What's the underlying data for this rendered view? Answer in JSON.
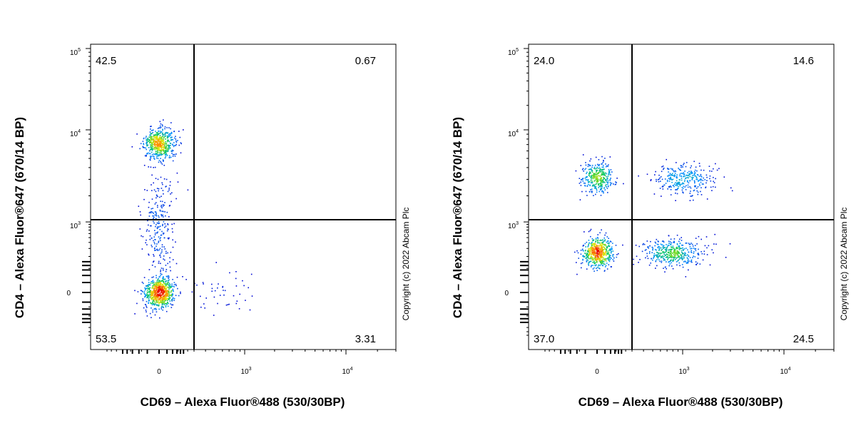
{
  "copyright": "Copyright (c) 2022 Abcam Plc",
  "chart_data": [
    {
      "type": "scatter",
      "title": "",
      "xlabel": "CD69 – Alexa Fluor®488 (530/30BP)",
      "ylabel": "CD4 – Alexa Fluor®647 (670/14 BP)",
      "x_scale": "biexponential",
      "y_scale": "biexponential",
      "x_ticks": [
        "0",
        "10^3",
        "10^4"
      ],
      "y_ticks": [
        "0",
        "10^3",
        "10^4",
        "10^5"
      ],
      "gate": {
        "x": 300,
        "y": 1100
      },
      "quadrants": {
        "upper_left": "42.5",
        "upper_right": "0.67",
        "lower_left": "53.5",
        "lower_right": "3.31"
      },
      "populations": [
        {
          "name": "",
          "x_center": 0,
          "y_center": 7200,
          "x_spread": 1.0,
          "y_spread": 1.0,
          "count": 520
        },
        {
          "name": "",
          "x_center": 0,
          "y_center": 0,
          "x_spread": 1.0,
          "y_spread": 1.0,
          "count": 650
        },
        {
          "name": "",
          "x_center": 0,
          "y_center": 800,
          "x_spread": 1.0,
          "y_spread": 3.5,
          "count": 260
        },
        {
          "name": "",
          "x_center": 600,
          "y_center": 0,
          "x_spread": 2.2,
          "y_spread": 1.2,
          "count": 45
        }
      ]
    },
    {
      "type": "scatter",
      "title": "",
      "xlabel": "CD69 – Alexa Fluor®488 (530/30BP)",
      "ylabel": "CD4 – Alexa Fluor®647 (670/14 BP)",
      "x_scale": "biexponential",
      "y_scale": "biexponential",
      "x_ticks": [
        "0",
        "10^3",
        "10^4"
      ],
      "y_ticks": [
        "0",
        "10^3",
        "10^4",
        "10^5"
      ],
      "gate": {
        "x": 300,
        "y": 1100
      },
      "quadrants": {
        "upper_left": "24.0",
        "upper_right": "14.6",
        "lower_left": "37.0",
        "lower_right": "24.5"
      },
      "populations": [
        {
          "name": "",
          "x_center": 0,
          "y_center": 3200,
          "x_spread": 1.0,
          "y_spread": 1.0,
          "count": 330
        },
        {
          "name": "",
          "x_center": 0,
          "y_center": 260,
          "x_spread": 1.0,
          "y_spread": 1.0,
          "count": 520
        },
        {
          "name": "",
          "x_center": 1000,
          "y_center": 3000,
          "x_spread": 2.2,
          "y_spread": 1.0,
          "count": 300
        },
        {
          "name": "",
          "x_center": 800,
          "y_center": 240,
          "x_spread": 2.0,
          "y_spread": 0.9,
          "count": 420
        }
      ]
    }
  ]
}
